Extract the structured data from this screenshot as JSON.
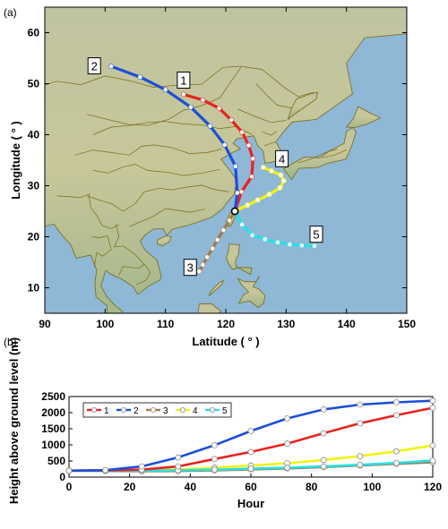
{
  "panel_a_label": "(a)",
  "panel_b_label": "(b)",
  "colors": {
    "1": "#e8231f",
    "2": "#1c4fd8",
    "3": "#a07a4a",
    "4": "#f3f20f",
    "5": "#27e0e6",
    "ocean": "#8fb7d6",
    "land": "#c9c79a",
    "border": "#7a6a10"
  },
  "chart_data": [
    {
      "type": "line",
      "subtype": "map-trajectories",
      "title": "",
      "xlabel": "Latitude ( ° )",
      "ylabel": "Longitude ( ° )",
      "xlim": [
        90,
        150
      ],
      "ylim": [
        5,
        65
      ],
      "xticks": [
        90,
        100,
        110,
        120,
        130,
        140,
        150
      ],
      "yticks": [
        10,
        20,
        30,
        40,
        50,
        60
      ],
      "start_point": [
        121.5,
        25.0
      ],
      "series": [
        {
          "name": "1",
          "x": [
            121.5,
            122.6,
            124.3,
            124.5,
            123.8,
            122.7,
            120.9,
            118.9,
            116.2,
            113.0
          ],
          "y": [
            25.0,
            28.8,
            31.8,
            35.3,
            37.9,
            40.5,
            42.9,
            45.2,
            46.8,
            47.9
          ]
        },
        {
          "name": "2",
          "x": [
            121.5,
            121.9,
            121.6,
            119.8,
            117.4,
            114.2,
            110.0,
            105.8,
            101.0
          ],
          "y": [
            25.0,
            28.6,
            33.8,
            38.0,
            41.7,
            45.4,
            48.8,
            51.3,
            53.4
          ]
        },
        {
          "name": "3",
          "x": [
            121.5,
            120.6,
            119.6,
            118.6,
            117.8,
            116.9,
            116.2,
            115.6
          ],
          "y": [
            25.0,
            23.2,
            21.3,
            19.4,
            17.7,
            16.0,
            14.5,
            13.2
          ]
        },
        {
          "name": "4",
          "x": [
            121.5,
            123.6,
            125.3,
            127.2,
            129.0,
            129.6,
            129.1,
            127.6,
            126.2
          ],
          "y": [
            25.0,
            26.2,
            27.2,
            28.3,
            29.6,
            31.0,
            32.1,
            32.9,
            33.6
          ]
        },
        {
          "name": "5",
          "x": [
            121.5,
            122.7,
            124.4,
            126.5,
            128.6,
            130.6,
            132.6,
            134.7
          ],
          "y": [
            25.0,
            22.4,
            20.3,
            19.5,
            18.9,
            18.5,
            18.3,
            18.2
          ]
        }
      ],
      "track_labels": [
        {
          "text": "1",
          "x": 113.0,
          "y": 50.7
        },
        {
          "text": "2",
          "x": 98.2,
          "y": 53.5
        },
        {
          "text": "3",
          "x": 114.1,
          "y": 14.0
        },
        {
          "text": "4",
          "x": 129.3,
          "y": 35.3
        },
        {
          "text": "5",
          "x": 135.0,
          "y": 20.5
        }
      ]
    },
    {
      "type": "line",
      "title": "",
      "xlabel": "Hour",
      "ylabel": "Height above ground level (m)",
      "xlim": [
        0,
        120
      ],
      "ylim": [
        0,
        2500
      ],
      "xticks": [
        0,
        20,
        40,
        60,
        80,
        100,
        120
      ],
      "yticks": [
        0,
        500,
        1000,
        1500,
        2000,
        2500
      ],
      "legend": "top-left",
      "x": [
        0,
        12,
        24,
        36,
        48,
        60,
        72,
        84,
        96,
        108,
        120
      ],
      "series": [
        {
          "name": "1",
          "values": [
            200,
            205,
            230,
            330,
            560,
            780,
            1040,
            1360,
            1670,
            1920,
            2150
          ]
        },
        {
          "name": "2",
          "values": [
            200,
            215,
            330,
            610,
            990,
            1430,
            1820,
            2100,
            2250,
            2320,
            2370
          ]
        },
        {
          "name": "3",
          "values": [
            200,
            190,
            180,
            190,
            210,
            240,
            270,
            310,
            360,
            410,
            460
          ]
        },
        {
          "name": "4",
          "values": [
            200,
            195,
            210,
            240,
            290,
            360,
            430,
            530,
            650,
            800,
            980
          ]
        },
        {
          "name": "5",
          "values": [
            200,
            195,
            195,
            210,
            230,
            260,
            290,
            330,
            380,
            440,
            510
          ]
        }
      ]
    }
  ]
}
